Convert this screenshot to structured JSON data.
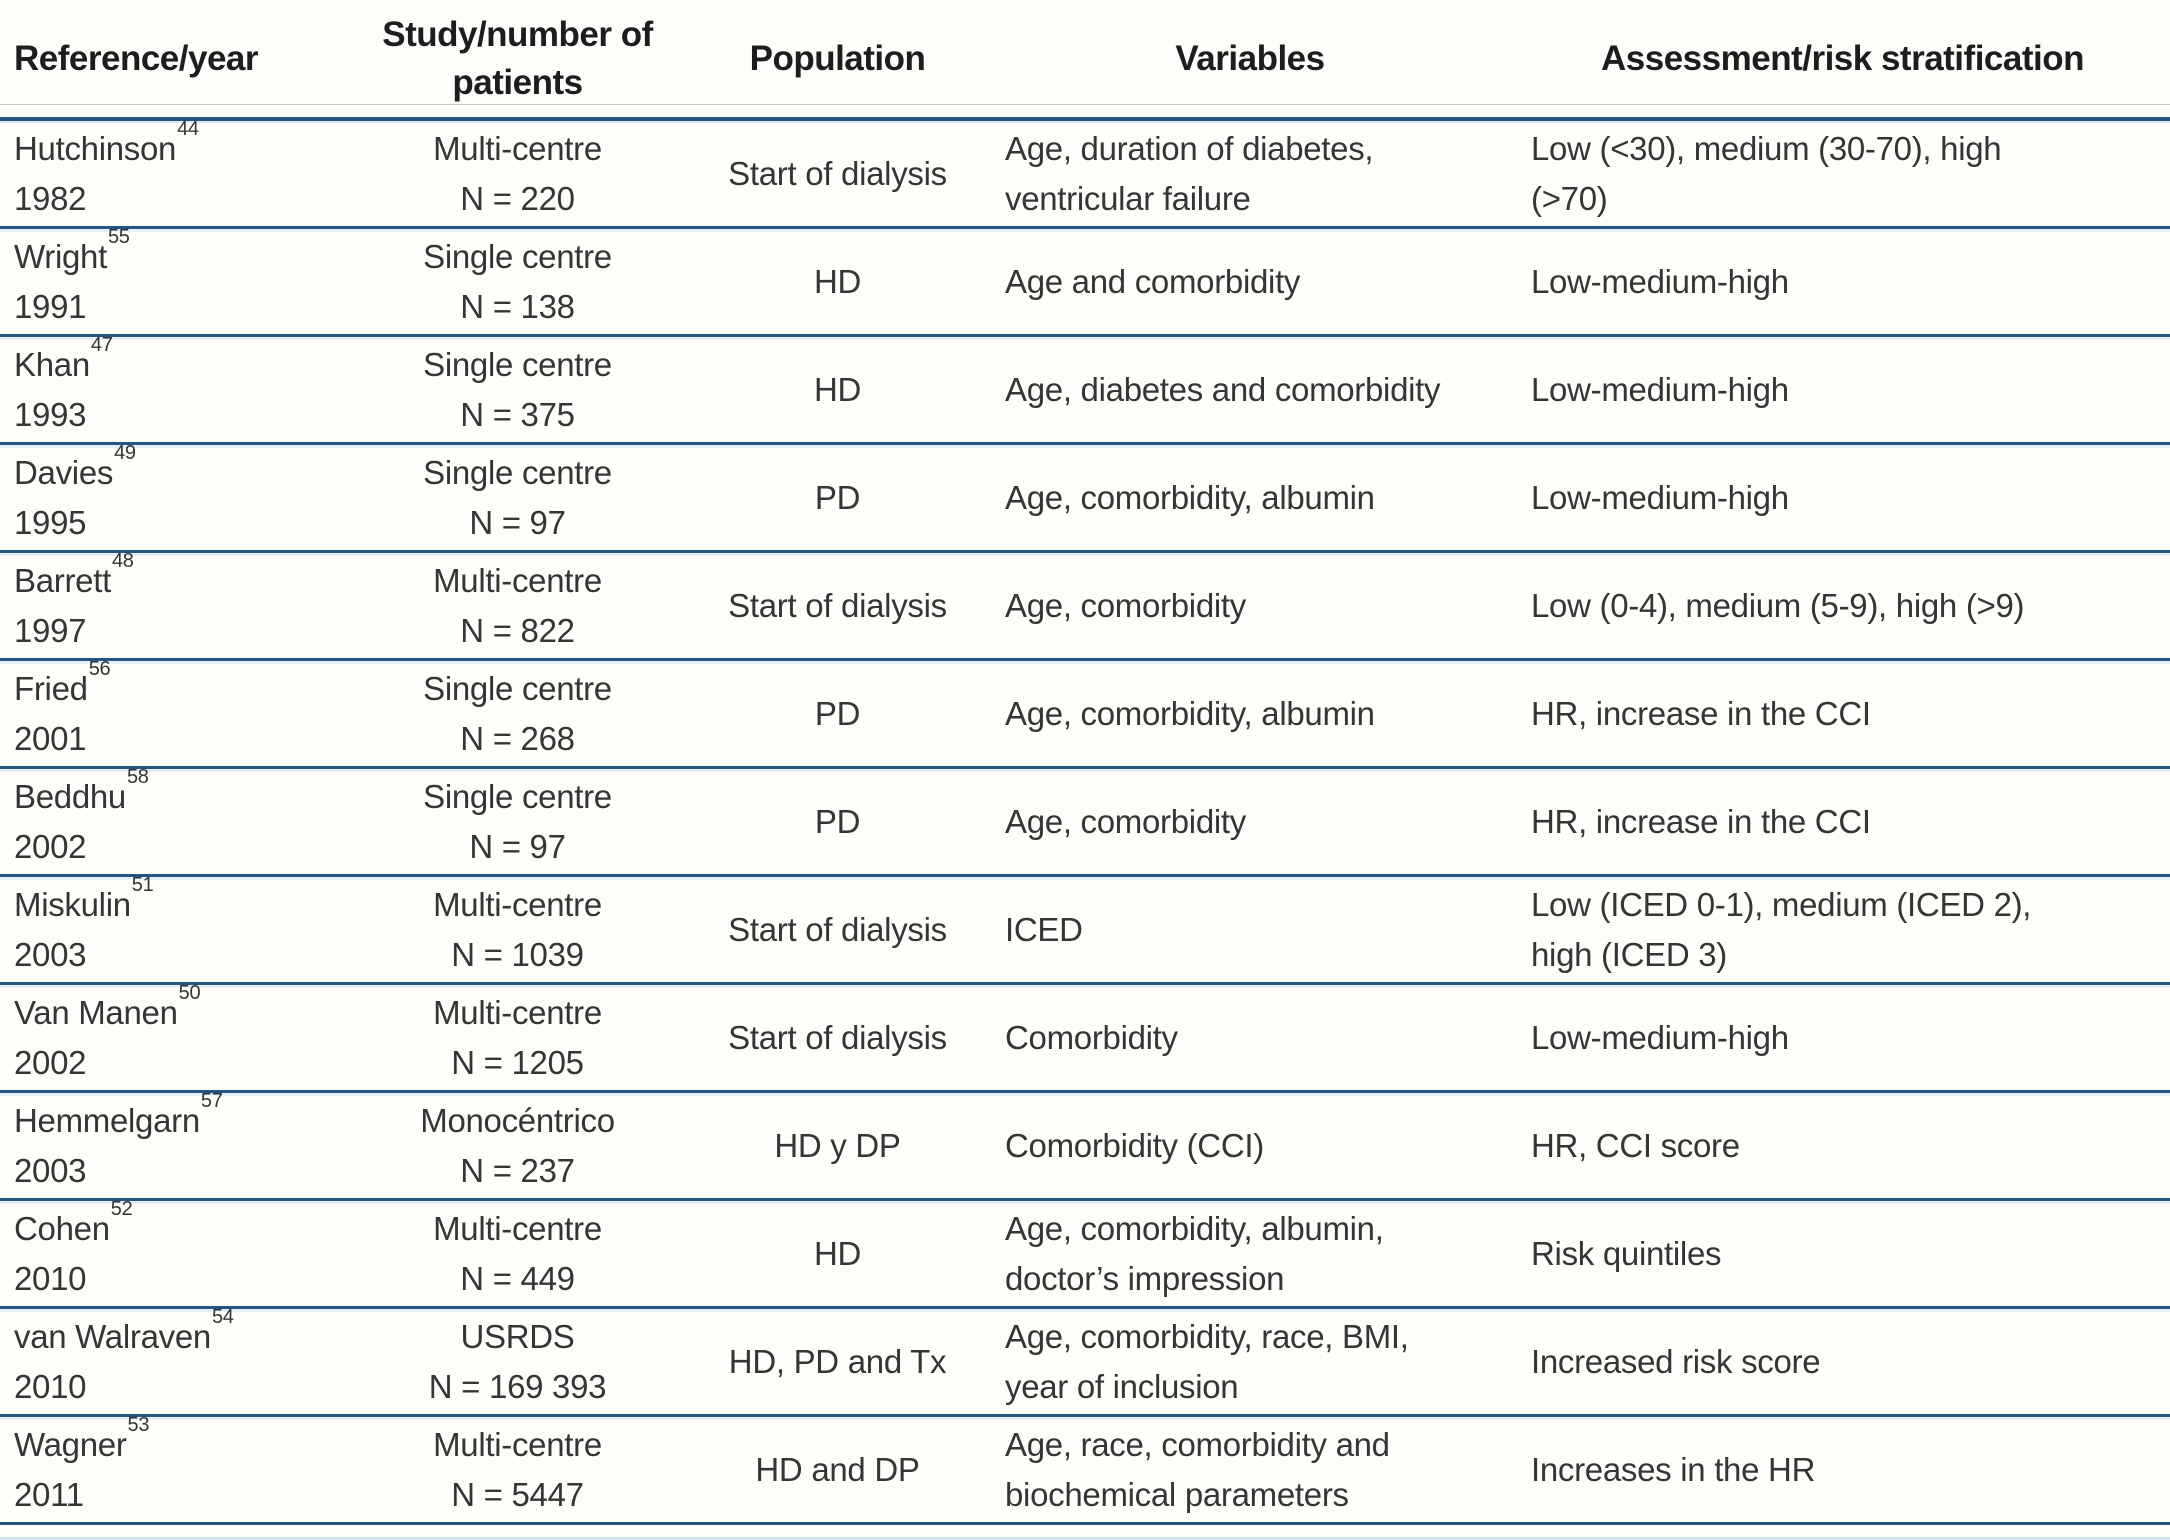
{
  "table": {
    "columns": [
      "Reference/year",
      "Study/number of patients",
      "Population",
      "Variables",
      "Assessment/risk stratification"
    ],
    "rows": [
      {
        "author": "Hutchinson",
        "ref": "44",
        "year": "1982",
        "study": "Multi-centre",
        "n": "N = 220",
        "population": "Start of dialysis",
        "variables": "Age, duration of diabetes,\nventricular failure",
        "assessment": "Low (<30), medium (30-70), high\n(>70)"
      },
      {
        "author": "Wright",
        "ref": "55",
        "year": "1991",
        "study": "Single centre",
        "n": "N = 138",
        "population": "HD",
        "variables": "Age and comorbidity",
        "assessment": "Low-medium-high"
      },
      {
        "author": "Khan",
        "ref": "47",
        "year": "1993",
        "study": "Single centre",
        "n": "N = 375",
        "population": "HD",
        "variables": "Age, diabetes and comorbidity",
        "assessment": "Low-medium-high"
      },
      {
        "author": "Davies",
        "ref": "49",
        "year": "1995",
        "study": "Single centre",
        "n": "N = 97",
        "population": "PD",
        "variables": "Age, comorbidity, albumin",
        "assessment": "Low-medium-high"
      },
      {
        "author": "Barrett",
        "ref": "48",
        "year": "1997",
        "study": "Multi-centre",
        "n": "N = 822",
        "population": "Start of dialysis",
        "variables": "Age, comorbidity",
        "assessment": "Low (0-4), medium (5-9), high (>9)"
      },
      {
        "author": "Fried",
        "ref": "56",
        "year": "2001",
        "study": "Single centre",
        "n": "N = 268",
        "population": "PD",
        "variables": "Age, comorbidity, albumin",
        "assessment": "HR, increase in the CCI"
      },
      {
        "author": "Beddhu",
        "ref": "58",
        "year": "2002",
        "study": "Single centre",
        "n": "N = 97",
        "population": "PD",
        "variables": "Age, comorbidity",
        "assessment": "HR, increase in the CCI"
      },
      {
        "author": "Miskulin",
        "ref": "51",
        "year": "2003",
        "study": "Multi-centre",
        "n": "N = 1039",
        "population": "Start of dialysis",
        "variables": "ICED",
        "assessment": "Low (ICED 0-1), medium (ICED 2),\nhigh (ICED 3)"
      },
      {
        "author": "Van Manen",
        "ref": "50",
        "year": "2002",
        "study": "Multi-centre",
        "n": "N = 1205",
        "population": "Start of dialysis",
        "variables": "Comorbidity",
        "assessment": "Low-medium-high"
      },
      {
        "author": "Hemmelgarn",
        "ref": "57",
        "year": "2003",
        "study": "Monocéntrico",
        "n": "N = 237",
        "population": "HD y DP",
        "variables": "Comorbidity (CCI)",
        "assessment": "HR, CCI score"
      },
      {
        "author": "Cohen",
        "ref": "52",
        "year": "2010",
        "study": "Multi-centre",
        "n": "N = 449",
        "population": "HD",
        "variables": "Age, comorbidity, albumin,\ndoctor’s impression",
        "assessment": "Risk quintiles"
      },
      {
        "author": "van Walraven",
        "ref": "54",
        "year": "2010",
        "study": "USRDS",
        "n": "N = 169 393",
        "population": "HD, PD and Tx",
        "variables": "Age, comorbidity, race, BMI,\nyear of inclusion",
        "assessment": "Increased risk score"
      },
      {
        "author": "Wagner",
        "ref": "53",
        "year": "2011",
        "study": "Multi-centre",
        "n": "N = 5447",
        "population": "HD and DP",
        "variables": "Age, race, comorbidity and\nbiochemical parameters",
        "assessment": "Increases in the HR"
      }
    ],
    "colors": {
      "border_navy": "#24557e",
      "light_rule": "#cfe3f1",
      "header_thin_rule": "#c6c6c6"
    }
  }
}
